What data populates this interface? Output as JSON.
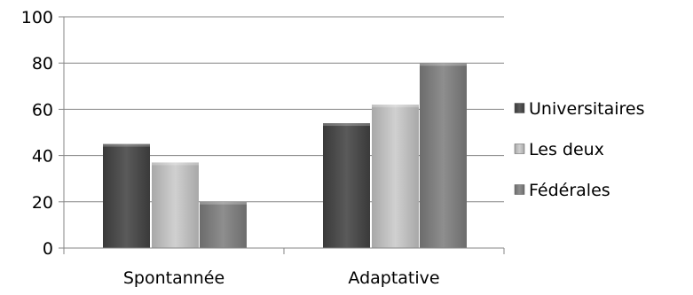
{
  "chart_data": {
    "type": "bar",
    "categories": [
      "Spontannée",
      "Adaptative"
    ],
    "series": [
      {
        "name": "Universitaires",
        "values": [
          45,
          54
        ],
        "color": "#4d4d4d"
      },
      {
        "name": "Les deux",
        "values": [
          37,
          62
        ],
        "color": "#b8b8b8"
      },
      {
        "name": "Fédérales",
        "values": [
          20,
          80
        ],
        "color": "#7f7f7f"
      }
    ],
    "ylim": [
      0,
      100
    ],
    "yticks": [
      0,
      20,
      40,
      60,
      80,
      100
    ],
    "ytick_labels": [
      "0",
      "20",
      "40",
      "60",
      "80",
      "100"
    ],
    "grid": true,
    "legend_position": "right",
    "title": "",
    "xlabel": "",
    "ylabel": ""
  }
}
